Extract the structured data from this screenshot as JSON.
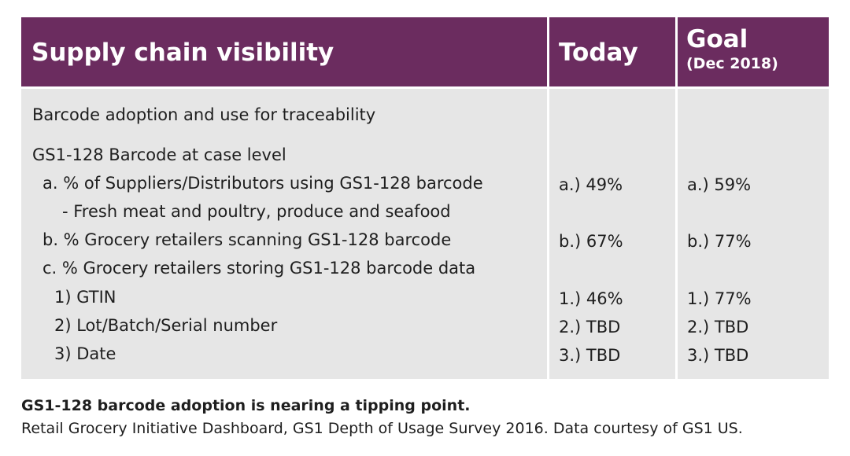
{
  "table": {
    "header": {
      "title": "Supply chain visibility",
      "today": "Today",
      "goal": "Goal",
      "goal_sub": "(Dec 2018)"
    },
    "rows": {
      "section": "Barcode adoption and use for traceability",
      "case_level": "GS1-128 Barcode at case level",
      "a": "a. % of Suppliers/Distributors using GS1-128 barcode",
      "a_sub": "- Fresh meat and poultry, produce and seafood",
      "b": "b. % Grocery retailers scanning GS1-128 barcode",
      "c": "c. % Grocery retailers storing GS1-128 barcode data",
      "c1": "1) GTIN",
      "c2": "2) Lot/Batch/Serial number",
      "c3": "3) Date"
    },
    "today": {
      "a": "a.) 49%",
      "b": "b.) 67%",
      "c1": "1.) 46%",
      "c2": "2.) TBD",
      "c3": "3.) TBD"
    },
    "goal": {
      "a": "a.) 59%",
      "b": "b.) 77%",
      "c1": "1.) 77%",
      "c2": "2.) TBD",
      "c3": "3.) TBD"
    }
  },
  "caption": {
    "headline": "GS1-128 barcode adoption is nearing a tipping point.",
    "source": "Retail Grocery Initiative Dashboard, GS1 Depth of Usage Survey 2016. Data courtesy of GS1 US."
  },
  "colors": {
    "header_bg": "#6b2c5f",
    "body_bg": "#e6e6e6"
  }
}
